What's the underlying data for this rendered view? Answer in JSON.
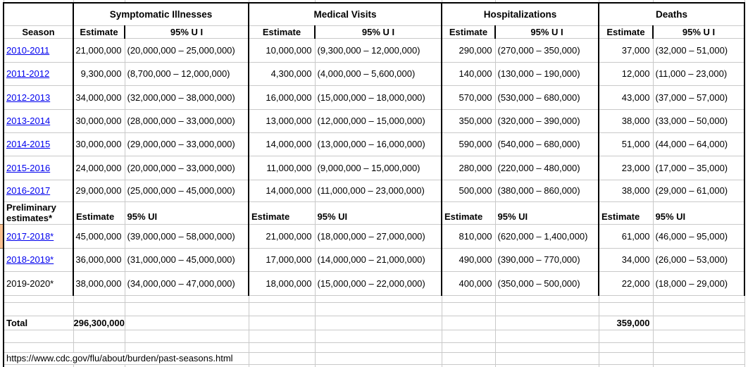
{
  "colors": {
    "hyperlink": "#0000EE",
    "table_border": "#000000",
    "gridline": "#C9C9C9",
    "left_cell_fragment": "#FAC090"
  },
  "table": {
    "groups": [
      "Symptomatic Illnesses",
      "Medical Visits",
      "Hospitalizations",
      "Deaths"
    ],
    "season_header": "Season",
    "estimate_header": "Estimate",
    "ui_header": "95% U I",
    "rows": [
      {
        "season": "2010-2011",
        "is_link": true,
        "cells": [
          "21,000,000",
          "(20,000,000 – 25,000,000)",
          "10,000,000",
          "(9,300,000 – 12,000,000)",
          "290,000",
          "(270,000 – 350,000)",
          "37,000",
          "(32,000 – 51,000)"
        ]
      },
      {
        "season": "2011-2012",
        "is_link": true,
        "cells": [
          "9,300,000",
          "(8,700,000 – 12,000,000)",
          "4,300,000",
          "(4,000,000 – 5,600,000)",
          "140,000",
          "(130,000 – 190,000)",
          "12,000",
          "(11,000 – 23,000)"
        ]
      },
      {
        "season": "2012-2013",
        "is_link": true,
        "cells": [
          "34,000,000",
          "(32,000,000 – 38,000,000)",
          "16,000,000",
          "(15,000,000 – 18,000,000)",
          "570,000",
          "(530,000 – 680,000)",
          "43,000",
          "(37,000 – 57,000)"
        ]
      },
      {
        "season": "2013-2014",
        "is_link": true,
        "cells": [
          "30,000,000",
          "(28,000,000 – 33,000,000)",
          "13,000,000",
          "(12,000,000 – 15,000,000)",
          "350,000",
          "(320,000 – 390,000)",
          "38,000",
          "(33,000 – 50,000)"
        ]
      },
      {
        "season": "2014-2015",
        "is_link": true,
        "cells": [
          "30,000,000",
          "(29,000,000 – 33,000,000)",
          "14,000,000",
          "(13,000,000 – 16,000,000)",
          "590,000",
          "(540,000 – 680,000)",
          "51,000",
          "(44,000 – 64,000)"
        ]
      },
      {
        "season": "2015-2016",
        "is_link": true,
        "cells": [
          "24,000,000",
          "(20,000,000 – 33,000,000)",
          "11,000,000",
          "(9,000,000 – 15,000,000)",
          "280,000",
          "(220,000 – 480,000)",
          "23,000",
          "(17,000 – 35,000)"
        ]
      },
      {
        "season": "2016-2017",
        "is_link": true,
        "cells": [
          "29,000,000",
          "(25,000,000 – 45,000,000)",
          "14,000,000",
          "(11,000,000 – 23,000,000)",
          "500,000",
          "(380,000 – 860,000)",
          "38,000",
          "(29,000 – 61,000)"
        ]
      }
    ],
    "preliminary": {
      "label": "Preliminary estimates*",
      "estimate_header": "Estimate",
      "ui_header": "95% UI"
    },
    "preliminary_rows": [
      {
        "season": "2017-2018*",
        "is_link": true,
        "left_cell_highlight": true,
        "cells": [
          "45,000,000",
          "(39,000,000 – 58,000,000)",
          "21,000,000",
          "(18,000,000 – 27,000,000)",
          "810,000",
          "(620,000 – 1,400,000)",
          "61,000",
          "(46,000 – 95,000)"
        ]
      },
      {
        "season": "2018-2019*",
        "is_link": true,
        "left_cell_highlight": false,
        "cells": [
          "36,000,000",
          "(31,000,000 – 45,000,000)",
          "17,000,000",
          "(14,000,000 – 21,000,000)",
          "490,000",
          "(390,000 – 770,000)",
          "34,000",
          "(26,000 – 53,000)"
        ]
      },
      {
        "season": "2019-2020*",
        "is_link": false,
        "left_cell_highlight": false,
        "cells": [
          "38,000,000",
          "(34,000,000 – 47,000,000)",
          "18,000,000",
          "(15,000,000 – 22,000,000)",
          "400,000",
          "(350,000 – 500,000)",
          "22,000",
          "(18,000 – 29,000)"
        ]
      }
    ],
    "total": {
      "label": "Total",
      "symptomatic_estimate": "296,300,000",
      "deaths_estimate": "359,000"
    },
    "source_url": "https://www.cdc.gov/flu/about/burden/past-seasons.html"
  }
}
